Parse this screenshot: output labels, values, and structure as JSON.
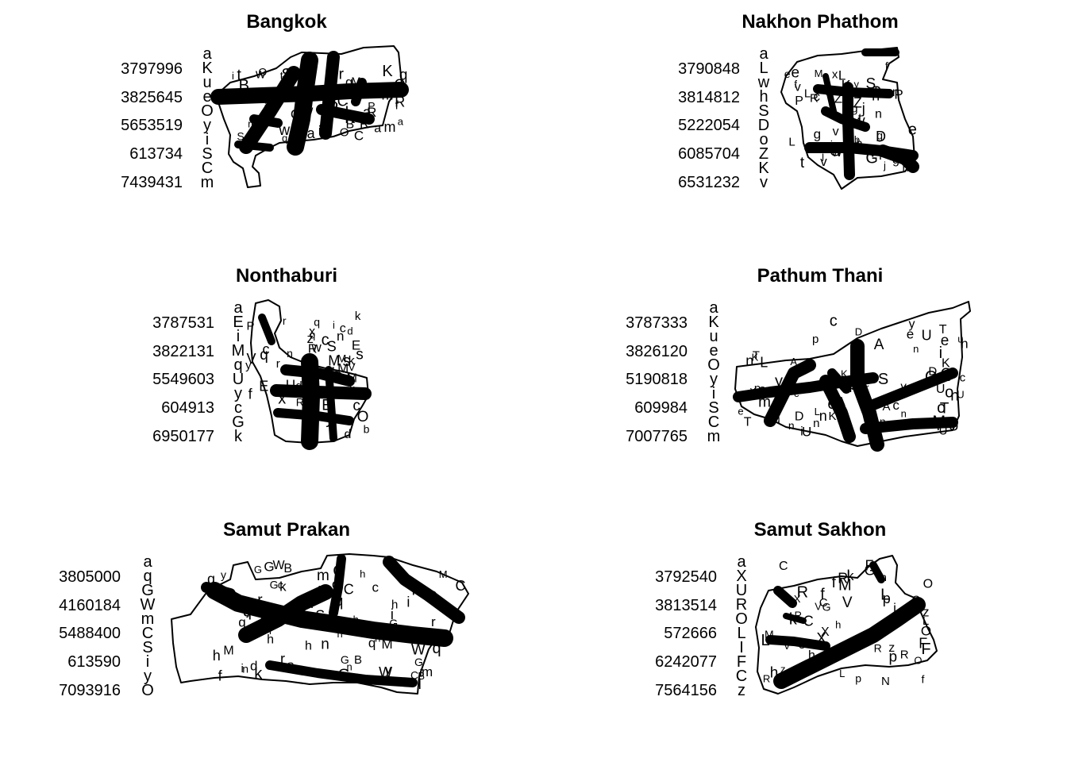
{
  "figure": {
    "panels": [
      {
        "id": "bangkok",
        "title": "Bangkok",
        "legend_numbers": [
          "3797996",
          "3825645",
          "5653519",
          "613734",
          "7439431"
        ],
        "legend_symbols": [
          "a",
          "K",
          "u",
          "e",
          "O",
          "y",
          "i",
          "S",
          "C",
          "m"
        ],
        "letters": "KuOyiSCmaBfbLnrRPqwMtdJ"
      },
      {
        "id": "nakhon-phathom",
        "title": "Nakhon Phathom",
        "legend_numbers": [
          "3790848",
          "3814812",
          "5222054",
          "6085704",
          "6531232"
        ],
        "legend_symbols": [
          "a",
          "L",
          "w",
          "h",
          "S",
          "D",
          "o",
          "Z",
          "K",
          "v"
        ],
        "letters": "LwhSDoZKvnBMYxcjgtGRPbfeWy"
      },
      {
        "id": "nonthaburi",
        "title": "Nonthaburi",
        "legend_numbers": [
          "3787531",
          "3822131",
          "5549603",
          "604913",
          "6950177"
        ],
        "legend_symbols": [
          "a",
          "E",
          "i",
          "M",
          "q",
          "U",
          "y",
          "c",
          "G",
          "k"
        ],
        "letters": "EiMqUycGkRPrwSdbfsMnVzOx"
      },
      {
        "id": "pathum-thani",
        "title": "Pathum Thani",
        "legend_numbers": [
          "3787333",
          "3826120",
          "5190818",
          "609984",
          "7007765"
        ],
        "legend_symbols": [
          "a",
          "K",
          "u",
          "e",
          "O",
          "y",
          "i",
          "S",
          "C",
          "m"
        ],
        "letters": "KueOyiSCmnohMUpADTvLcQ"
      },
      {
        "id": "samut-prakan",
        "title": "Samut Prakan",
        "legend_numbers": [
          "3805000",
          "4160184",
          "5488400",
          "613590",
          "7093916"
        ],
        "legend_symbols": [
          "a",
          "q",
          "G",
          "W",
          "m",
          "C",
          "S",
          "i",
          "y",
          "O"
        ],
        "letters": "qGWmCSiyOMBrnhfcdkl"
      },
      {
        "id": "samut-sakhon",
        "title": "Samut Sakhon",
        "legend_numbers": [
          "3792540",
          "3813514",
          "572666",
          "6242077",
          "7564156"
        ],
        "legend_symbols": [
          "a",
          "X",
          "U",
          "R",
          "O",
          "L",
          "I",
          "F",
          "C",
          "z"
        ],
        "letters": "XUROLIFCzNhkfjpMVeG"
      }
    ]
  }
}
